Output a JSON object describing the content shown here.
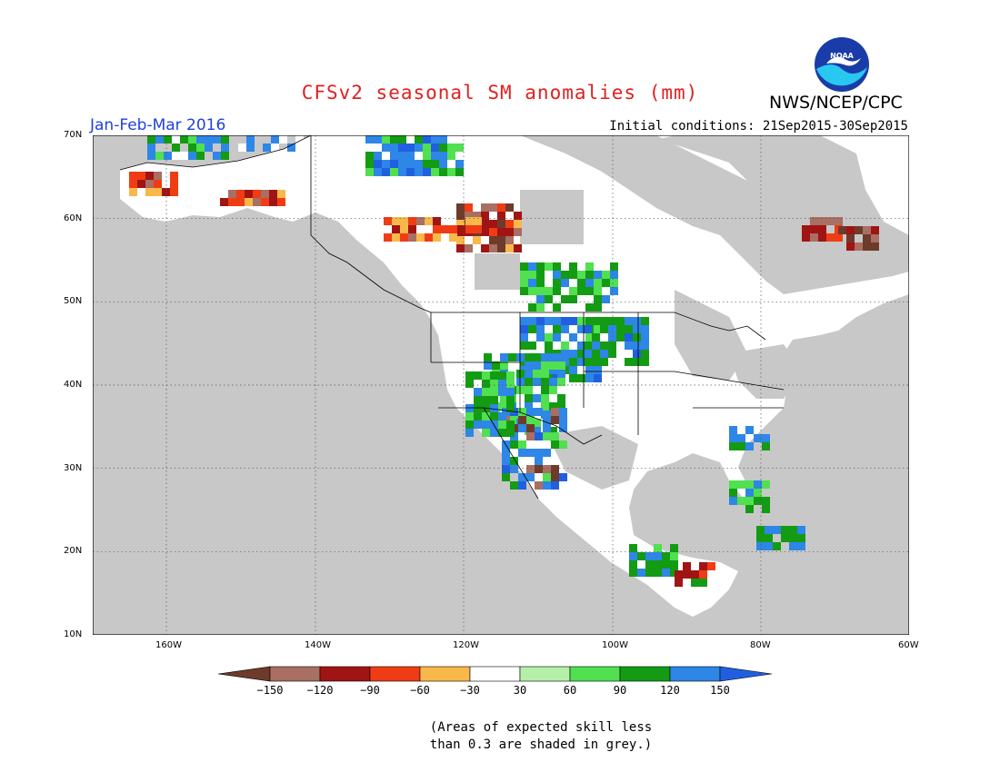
{
  "header": {
    "title": "CFSv2 seasonal SM anomalies (mm)",
    "org": "NWS/NCEP/CPC",
    "period": "Jan-Feb-Mar 2016",
    "initial_conditions": "Initial conditions: 21Sep2015-30Sep2015"
  },
  "logo": {
    "text": "NOAA",
    "icon": "noaa-logo-icon"
  },
  "map": {
    "lat_labels": [
      "70N",
      "60N",
      "50N",
      "40N",
      "30N",
      "20N",
      "10N"
    ],
    "lon_labels": [
      "160W",
      "140W",
      "120W",
      "100W",
      "80W",
      "60W"
    ],
    "lat_range": [
      10,
      70
    ],
    "lon_range": [
      -170,
      -60
    ],
    "land_color": "#ffffff",
    "no_skill_color": "#c8c8c8",
    "ocean_color": "#c8c8c8"
  },
  "colorbar": {
    "labels": [
      "-150",
      "-120",
      "-90",
      "-60",
      "-30",
      "30",
      "60",
      "90",
      "120",
      "150"
    ],
    "colors": [
      "#6e3b2a",
      "#a86f62",
      "#a01414",
      "#f03c14",
      "#f8b84a",
      "#ffffff",
      "#b4f0a8",
      "#50e050",
      "#139b13",
      "#2e86e6",
      "#2060e0"
    ]
  },
  "note": {
    "line1": "(Areas of expected skill less",
    "line2": "than 0.3 are shaded in grey.)"
  }
}
